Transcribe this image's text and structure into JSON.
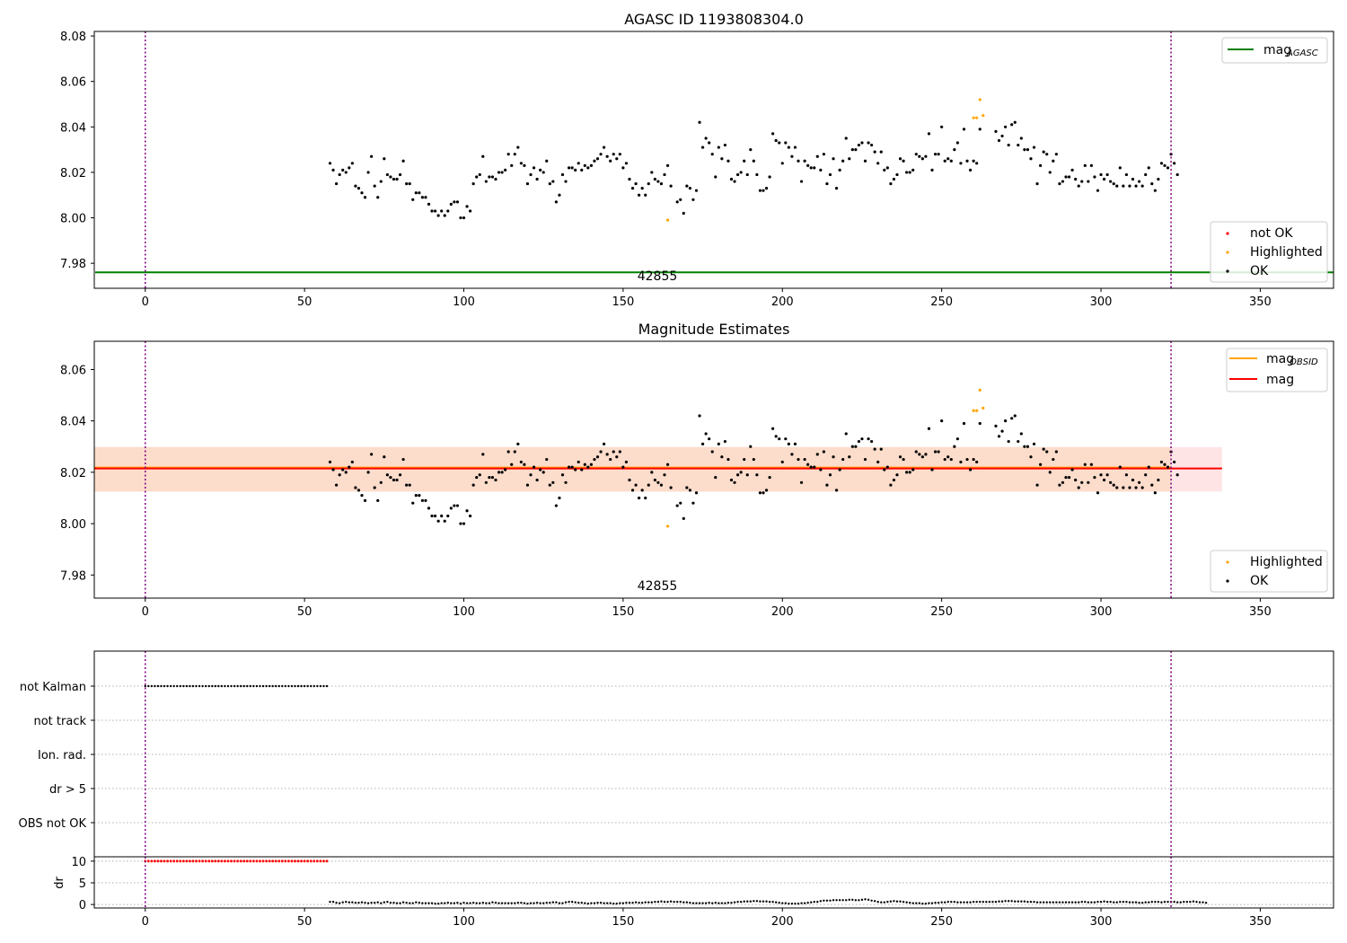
{
  "colors": {
    "ok": "#000000",
    "highlighted": "#ffa500",
    "not_ok": "#ff0000",
    "agasc_line": "#008000",
    "mag_line": "#ff0000",
    "mag_obsid_line": "#ffa500",
    "obs_marker": "#800080",
    "band_outer": "#ffe4e6",
    "band_inner": "#fcdccb",
    "grid": "#b0b0b0"
  },
  "chart_data": [
    {
      "type": "scatter",
      "title": "AGASC ID 1193808304.0",
      "xlim": [
        -16,
        373
      ],
      "ylim": [
        7.969,
        8.082
      ],
      "xticks": [
        "0",
        "50",
        "100",
        "150",
        "200",
        "250",
        "300",
        "350"
      ],
      "yticks": [
        "7.98",
        "8.00",
        "8.02",
        "8.04",
        "8.06",
        "8.08"
      ],
      "x_start": 58,
      "x_step": 1,
      "y_ok": [
        8.024,
        8.021,
        8.015,
        8.019,
        8.021,
        8.02,
        8.022,
        8.024,
        8.014,
        8.013,
        8.011,
        8.009,
        8.02,
        8.027,
        8.014,
        8.009,
        8.016,
        8.026,
        8.019,
        8.018,
        8.017,
        8.017,
        8.019,
        8.025,
        8.015,
        8.015,
        8.008,
        8.011,
        8.011,
        8.009,
        8.009,
        8.006,
        8.003,
        8.003,
        8.001,
        8.003,
        8.001,
        8.003,
        8.006,
        8.007,
        8.007,
        8.0,
        8.0,
        8.005,
        8.003,
        8.015,
        8.018,
        8.019,
        8.027,
        8.016,
        8.018,
        8.018,
        8.017,
        8.02,
        8.02,
        8.021,
        8.028,
        8.023,
        8.028,
        8.031,
        8.024,
        8.023,
        8.015,
        8.019,
        8.022,
        8.017,
        8.021,
        8.02,
        8.025,
        8.015,
        8.016,
        8.007,
        8.01,
        8.019,
        8.016,
        8.022,
        8.022,
        8.021,
        8.024,
        8.021,
        8.023,
        8.022,
        8.023,
        8.025,
        8.026,
        8.028,
        8.031,
        8.027,
        8.025,
        8.028,
        8.026,
        8.028,
        8.022,
        8.024,
        8.017,
        8.013,
        8.015,
        8.01,
        8.013,
        8.01,
        8.015,
        8.02,
        8.017,
        8.016,
        8.015,
        8.019,
        8.023,
        8.014,
        null,
        8.007,
        8.008,
        8.002,
        8.014,
        8.013,
        8.008,
        8.012,
        8.042,
        8.031,
        8.035,
        8.033,
        8.028,
        8.018,
        8.031,
        8.026,
        8.032,
        8.025,
        8.017,
        8.016,
        8.019,
        8.02,
        8.025,
        8.019,
        8.03,
        8.025,
        8.019,
        8.012,
        8.012,
        8.013,
        8.018,
        8.037,
        8.034,
        8.033,
        8.024,
        8.033,
        8.031,
        8.027,
        8.031,
        8.025,
        8.016,
        8.025,
        8.023,
        8.022,
        8.022,
        8.027,
        8.021,
        8.028,
        8.015,
        8.019,
        8.026,
        8.013,
        8.021,
        8.025,
        8.035,
        8.026,
        8.03,
        8.03,
        8.032,
        8.033,
        8.025,
        8.033,
        8.032,
        8.029,
        8.024,
        8.029,
        8.021,
        8.022,
        8.015,
        8.017,
        8.019,
        8.026,
        8.025,
        8.02,
        8.02,
        8.021,
        8.028,
        8.027,
        8.026,
        8.027,
        8.037,
        8.021,
        8.028,
        8.028,
        8.04,
        8.025,
        8.026,
        8.025,
        8.03,
        8.033,
        8.024,
        8.039,
        8.025,
        8.021,
        8.025,
        8.024,
        8.039,
        null,
        null,
        null,
        null,
        8.038,
        8.034,
        8.036,
        8.04,
        8.032,
        8.041,
        8.042,
        8.032,
        8.035,
        8.03,
        8.03,
        8.026,
        8.031,
        8.015,
        8.023,
        8.029,
        8.028,
        8.02,
        8.025,
        8.028,
        8.015,
        8.016,
        8.018,
        8.018,
        8.021,
        8.017,
        8.014,
        8.016,
        8.023,
        8.016,
        8.023,
        8.018,
        8.012,
        8.019,
        8.017,
        8.019,
        8.016,
        8.015,
        8.014,
        8.022,
        8.014,
        8.019,
        8.014,
        8.017,
        8.014,
        8.016,
        8.014,
        8.019,
        8.022,
        8.015,
        8.012,
        8.017,
        8.024,
        8.023,
        8.022,
        8.028,
        8.024,
        8.019
      ],
      "highlighted_points": [
        [
          164,
          7.999
        ],
        [
          260,
          8.044
        ],
        [
          261,
          8.044
        ],
        [
          262,
          8.052
        ],
        [
          263,
          8.045
        ]
      ],
      "hline_agasc": 7.976,
      "obs_lines_x": [
        0,
        322
      ],
      "obsid_label": "42855",
      "legend_lines": [
        {
          "label": "mag",
          "sub": "AGASC",
          "color": "#008000"
        }
      ],
      "legend_points": [
        {
          "label": "not OK",
          "color": "#ff0000"
        },
        {
          "label": "Highlighted",
          "color": "#ffa500"
        },
        {
          "label": "OK",
          "color": "#000000"
        }
      ]
    },
    {
      "type": "scatter",
      "title": "Magnitude Estimates",
      "xlim": [
        -16,
        373
      ],
      "ylim": [
        7.971,
        8.071
      ],
      "xticks": [
        "0",
        "50",
        "100",
        "150",
        "200",
        "250",
        "300",
        "350"
      ],
      "yticks": [
        "7.98",
        "8.00",
        "8.02",
        "8.04",
        "8.06"
      ],
      "mag": 8.0215,
      "mag_obsid": 8.0215,
      "band_outer": [
        8.0125,
        8.0298
      ],
      "band_inner": [
        8.0125,
        8.0298
      ],
      "band_x": [
        -16,
        338
      ],
      "obsid_label": "42855",
      "legend_lines": [
        {
          "label": "mag",
          "sub": "OBSID",
          "color": "#ffa500"
        },
        {
          "label": "mag",
          "sub": "",
          "color": "#ff0000"
        }
      ],
      "legend_points": [
        {
          "label": "Highlighted",
          "color": "#ffa500"
        },
        {
          "label": "OK",
          "color": "#000000"
        }
      ]
    },
    {
      "type": "scatter",
      "title": "",
      "xlim": [
        -16,
        373
      ],
      "categories": [
        "not Kalman",
        "not track",
        "Ion. rad.",
        "dr > 5",
        "OBS not OK"
      ],
      "flag_ranges": [
        {
          "category": "not Kalman",
          "x_from": 0,
          "x_to": 57
        }
      ],
      "xticks": [
        "0",
        "50",
        "100",
        "150",
        "200",
        "250",
        "300",
        "350"
      ]
    },
    {
      "type": "scatter",
      "ylabel": "dr",
      "xlim": [
        -16,
        373
      ],
      "ylim": [
        -0.8,
        11
      ],
      "yticks": [
        "0",
        "5",
        "10"
      ],
      "xticks": [
        "0",
        "50",
        "100",
        "150",
        "200",
        "250",
        "300",
        "350"
      ],
      "dr_high": {
        "x_from": 0,
        "x_to": 57,
        "value": 10
      },
      "dr_low": [
        0.6,
        0.6,
        0.4,
        0.3,
        0.5,
        0.6,
        0.5,
        0.5,
        0.4,
        0.4,
        0.5,
        0.4,
        0.3,
        0.4,
        0.4,
        0.5,
        0.3,
        0.5,
        0.6,
        0.4,
        0.4,
        0.3,
        0.3,
        0.5,
        0.4,
        0.3,
        0.3,
        0.5,
        0.4,
        0.3,
        0.3,
        0.3,
        0.3,
        0.2,
        0.2,
        0.3,
        0.3,
        0.4,
        0.3,
        0.3,
        0.4,
        0.2,
        0.4,
        0.3,
        0.3,
        0.4,
        0.3,
        0.3,
        0.4,
        0.3,
        0.3,
        0.5,
        0.4,
        0.3,
        0.3,
        0.3,
        0.3,
        0.3,
        0.3,
        0.4,
        0.4,
        0.3,
        0.2,
        0.3,
        0.3,
        0.4,
        0.3,
        0.3,
        0.4,
        0.4,
        0.5,
        0.5,
        0.3,
        0.3,
        0.5,
        0.6,
        0.6,
        0.5,
        0.4,
        0.4,
        0.3,
        0.2,
        0.3,
        0.3,
        0.4,
        0.4,
        0.3,
        0.3,
        0.3,
        0.2,
        0.2,
        0.3,
        0.3,
        0.4,
        0.4,
        0.4,
        0.5,
        0.4,
        0.4,
        0.5,
        0.5,
        0.5,
        0.6,
        0.6,
        0.7,
        0.6,
        0.6,
        0.7,
        0.6,
        0.6,
        0.6,
        0.5,
        0.5,
        0.4,
        0.3,
        0.3,
        0.3,
        0.3,
        0.3,
        0.4,
        0.3,
        0.4,
        0.3,
        0.3,
        0.3,
        0.4,
        0.4,
        0.5,
        0.6,
        0.6,
        0.7,
        0.7,
        0.7,
        0.8,
        0.8,
        0.7,
        0.7,
        0.7,
        0.6,
        0.6,
        0.5,
        0.4,
        0.3,
        0.3,
        0.2,
        0.2,
        0.2,
        0.2,
        0.3,
        0.3,
        0.4,
        0.5,
        0.6,
        0.6,
        0.8,
        0.9,
        0.9,
        0.9,
        1.0,
        1.0,
        1.0,
        1.0,
        1.0,
        1.1,
        1.1,
        1.0,
        1.0,
        1.1,
        1.2,
        1.1,
        0.9,
        0.8,
        0.6,
        0.5,
        0.5,
        0.6,
        0.7,
        0.8,
        0.7,
        0.7,
        0.6,
        0.5,
        0.4,
        0.3,
        0.3,
        0.3,
        0.2,
        0.2,
        0.3,
        0.3,
        0.4,
        0.4,
        0.5,
        0.5,
        0.6,
        0.6,
        0.6,
        0.5,
        0.5,
        0.5,
        0.5,
        0.5,
        0.6,
        0.6,
        0.6,
        0.6,
        0.6,
        0.6,
        0.6,
        0.6,
        0.7,
        0.7,
        0.8,
        0.8,
        0.8,
        0.7,
        0.7,
        0.7,
        0.7,
        0.6,
        0.6,
        0.6,
        0.5,
        0.5,
        0.5,
        0.5,
        0.5,
        0.5,
        0.5,
        0.5,
        0.5,
        0.5,
        0.5,
        0.5,
        0.5,
        0.5,
        0.6,
        0.6,
        0.5,
        0.5,
        0.5,
        0.6,
        0.6,
        0.7,
        0.6,
        0.6,
        0.5,
        0.5,
        0.6,
        0.6,
        0.6,
        0.5,
        0.5,
        0.5,
        0.4,
        0.4,
        0.5,
        0.5,
        0.6,
        0.6,
        0.6,
        0.5,
        0.6,
        0.6,
        0.6,
        0.6,
        0.5,
        0.5,
        0.6,
        0.6,
        0.6,
        0.7,
        0.6,
        0.5,
        0.5,
        0.4
      ]
    }
  ]
}
